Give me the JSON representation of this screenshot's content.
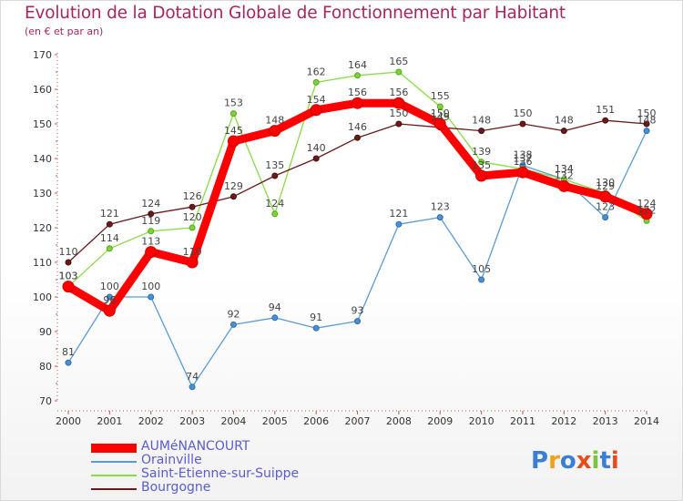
{
  "title": "Evolution de la Dotation Globale de Fonctionnement par Habitant",
  "subtitle": "(en € et par an)",
  "logo": {
    "text": "Proxiti"
  },
  "chart_data": {
    "type": "line",
    "x": [
      "2000",
      "2001",
      "2002",
      "2003",
      "2004",
      "2005",
      "2006",
      "2007",
      "2008",
      "2009",
      "2010",
      "2011",
      "2012",
      "2013",
      "2014"
    ],
    "ylim": [
      70,
      170
    ],
    "yticks": [
      70,
      80,
      90,
      100,
      110,
      120,
      130,
      140,
      150,
      160,
      170
    ],
    "grid": false,
    "legend_position": "bottom-left",
    "series": [
      {
        "name": "AUMéNANCOURT",
        "color": "#ff0000",
        "values": [
          103,
          96,
          113,
          110,
          145,
          148,
          154,
          156,
          156,
          150,
          135,
          136,
          132,
          129,
          124
        ],
        "labels": [
          "103",
          "96",
          "113",
          "110",
          "145",
          "148",
          "154",
          "156",
          "156",
          "150",
          "135",
          "136",
          "132",
          "129",
          "124"
        ]
      },
      {
        "name": "Orainville",
        "color": "#5a9bd5",
        "values": [
          81,
          100,
          100,
          74,
          92,
          94,
          91,
          93,
          121,
          123,
          105,
          138,
          134,
          123,
          148
        ],
        "labels": [
          "81",
          "100",
          "100",
          "74",
          "92",
          "94",
          "91",
          "93",
          "121",
          "123",
          "105",
          "138",
          "134",
          "123",
          "148"
        ]
      },
      {
        "name": "Saint-Etienne-sur-Suippe",
        "color": "#88dd44",
        "values": [
          103,
          114,
          119,
          120,
          153,
          124,
          162,
          164,
          165,
          155,
          139,
          137,
          134,
          130,
          122
        ],
        "labels": [
          "103",
          "114",
          "119",
          "120",
          "153",
          "124",
          "162",
          "164",
          "165",
          "155",
          "139",
          "137",
          "134",
          "130",
          "122"
        ]
      },
      {
        "name": "Bourgogne",
        "color": "#6b1a1a",
        "values": [
          110,
          121,
          124,
          126,
          129,
          135,
          140,
          146,
          150,
          149,
          148,
          150,
          148,
          151,
          150
        ],
        "labels": [
          "110",
          "121",
          "124",
          "126",
          "129",
          "135",
          "140",
          "146",
          "150",
          "149",
          "148",
          "150",
          "148",
          "151",
          "150"
        ]
      }
    ]
  }
}
